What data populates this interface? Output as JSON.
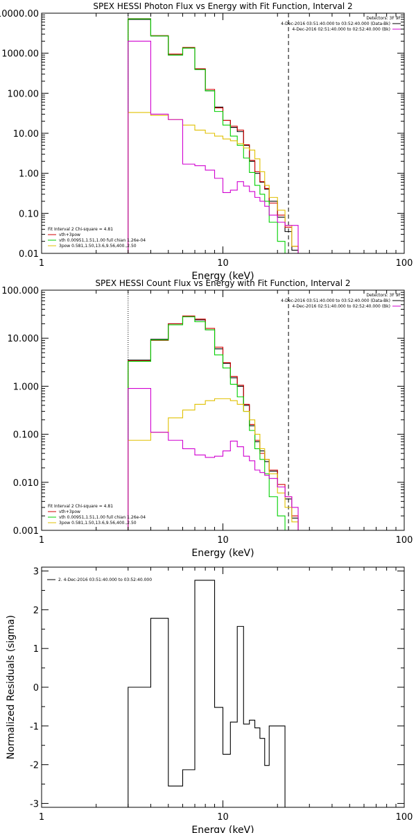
{
  "colors": {
    "black": "#000000",
    "red": "#d00000",
    "green": "#00d000",
    "magenta": "#d000d0",
    "yellow": "#e0c000"
  },
  "chart_data": [
    {
      "type": "line",
      "title": "SPEX HESSI Photon Flux vs Energy with Fit Function, Interval 2",
      "xlabel": "Energy (keV)",
      "ylabel": "",
      "xscale": "log",
      "yscale": "log",
      "xlim": [
        1,
        100
      ],
      "ylim": [
        0.01,
        10000
      ],
      "xticks": [
        {
          "value": 1,
          "label": "1"
        },
        {
          "value": 10,
          "label": "10"
        },
        {
          "value": 100,
          "label": "100"
        }
      ],
      "yticks": [
        {
          "value": 10000,
          "label": "10000.00"
        },
        {
          "value": 1000,
          "label": "1000.00"
        },
        {
          "value": 100,
          "label": "100.00"
        },
        {
          "value": 10,
          "label": "10.00"
        },
        {
          "value": 1,
          "label": "1.00"
        },
        {
          "value": 0.1,
          "label": "0.10"
        },
        {
          "value": 0.01,
          "label": "0.01"
        }
      ],
      "vlines": [
        {
          "x": 3.0,
          "style": "dotted",
          "color": "black"
        },
        {
          "x": 23.0,
          "style": "dashed",
          "color": "black"
        }
      ],
      "legend_top": {
        "placement": "top-right",
        "header": "Detectors: 3F 9F",
        "entries": [
          {
            "label": "4-Dec-2016 03:51:40.000 to 03:52:40.000 (Data-Bk)",
            "color": "black"
          },
          {
            "label": "4-Dec-2016 02:51:40.000 to 02:52:40.000 (Bk)",
            "color": "magenta"
          }
        ]
      },
      "legend_bottom": {
        "placement": "bottom-left",
        "header": "Fit Interval 2   Chi-square = 4.81",
        "entries": [
          {
            "label": "vth+3pow",
            "color": "red"
          },
          {
            "label": "vth 0.00951,1.51,1.00  full chian 1.26e-04",
            "color": "green"
          },
          {
            "label": "3pow 0.581,1.50,13.6,9.56,400.,2.50",
            "color": "yellow"
          }
        ]
      },
      "edges": [
        3.0,
        4.0,
        5.0,
        6.0,
        7.0,
        8.0,
        9.0,
        10.0,
        11.0,
        12.0,
        13.0,
        14.0,
        15.0,
        16.0,
        17.0,
        18.0,
        20.0,
        22.0,
        24.0,
        26.0
      ],
      "series": [
        {
          "name": "Data-Bk",
          "color": "black",
          "values": [
            7000,
            2700,
            900,
            1350,
            400,
            115,
            45,
            21,
            14,
            11,
            5.0,
            2.0,
            1.0,
            0.6,
            0.4,
            0.2,
            0.08,
            0.035,
            0.012
          ]
        },
        {
          "name": "vth+3pow",
          "color": "red",
          "values": [
            7300,
            2750,
            950,
            1400,
            410,
            125,
            43,
            21,
            15,
            12,
            5.2,
            2.1,
            1.1,
            0.62,
            0.42,
            0.18,
            0.09,
            0.045,
            0.015
          ]
        },
        {
          "name": "vth",
          "color": "green",
          "values": [
            7200,
            2700,
            900,
            1350,
            390,
            115,
            35,
            16,
            8.5,
            5.0,
            2.4,
            1.05,
            0.5,
            0.3,
            0.2,
            0.06,
            0.02,
            0.01,
            0.01
          ]
        },
        {
          "name": "3pow",
          "color": "yellow",
          "values": [
            33,
            28,
            22,
            16,
            12,
            10,
            8.5,
            7.2,
            6.5,
            5.5,
            4.3,
            3.8,
            2.3,
            1.1,
            0.5,
            0.25,
            0.12,
            0.05,
            0.015
          ]
        },
        {
          "name": "Bk",
          "color": "magenta",
          "values": [
            2000,
            30,
            22,
            1.7,
            1.55,
            1.2,
            0.75,
            0.33,
            0.38,
            0.62,
            0.48,
            0.35,
            0.25,
            0.2,
            0.15,
            0.09,
            0.06,
            0.05,
            0.05
          ]
        }
      ]
    },
    {
      "type": "line",
      "title": "SPEX HESSI Count Flux vs Energy with Fit Function, Interval 2",
      "xlabel": "Energy (keV)",
      "ylabel": "",
      "xscale": "log",
      "yscale": "log",
      "xlim": [
        1,
        100
      ],
      "ylim": [
        0.001,
        100
      ],
      "xticks": [
        {
          "value": 1,
          "label": "1"
        },
        {
          "value": 10,
          "label": "10"
        },
        {
          "value": 100,
          "label": "100"
        }
      ],
      "yticks": [
        {
          "value": 100,
          "label": "100.000"
        },
        {
          "value": 10,
          "label": "10.000"
        },
        {
          "value": 1,
          "label": "1.000"
        },
        {
          "value": 0.1,
          "label": "0.100"
        },
        {
          "value": 0.01,
          "label": "0.010"
        },
        {
          "value": 0.001,
          "label": "0.001"
        }
      ],
      "vlines": [
        {
          "x": 3.0,
          "style": "dotted",
          "color": "black"
        },
        {
          "x": 23.0,
          "style": "dashed",
          "color": "black"
        }
      ],
      "legend_top": {
        "placement": "top-right",
        "header": "Detectors: 3F 9F",
        "entries": [
          {
            "label": "4-Dec-2016 03:51:40.000 to 03:52:40.000 (Data-Bk)",
            "color": "black"
          },
          {
            "label": "4-Dec-2016 02:51:40.000 to 02:52:40.000 (Bk)",
            "color": "magenta"
          }
        ]
      },
      "legend_bottom": {
        "placement": "bottom-left",
        "header": "Fit Interval 2   Chi-square = 4.81",
        "entries": [
          {
            "label": "vth+3pow",
            "color": "red"
          },
          {
            "label": "vth 0.00951,1.51,1.00  full chian 1.26e-04",
            "color": "green"
          },
          {
            "label": "3pow 0.581,1.50,13.6,9.56,400.,2.50",
            "color": "yellow"
          }
        ]
      },
      "edges": [
        3.0,
        4.0,
        5.0,
        6.0,
        7.0,
        8.0,
        9.0,
        10.0,
        11.0,
        12.0,
        13.0,
        14.0,
        15.0,
        16.0,
        17.0,
        18.0,
        20.0,
        22.0,
        24.0,
        26.0
      ],
      "series": [
        {
          "name": "Data-Bk",
          "color": "black",
          "values": [
            3.5,
            9.5,
            20,
            28,
            24,
            15,
            6.0,
            3.0,
            1.5,
            1.0,
            0.4,
            0.15,
            0.07,
            0.045,
            0.027,
            0.017,
            0.008,
            0.0045,
            0.0018
          ]
        },
        {
          "name": "vth+3pow",
          "color": "red",
          "values": [
            3.4,
            9.0,
            20,
            29,
            25,
            16,
            6.5,
            3.1,
            1.6,
            1.05,
            0.42,
            0.16,
            0.075,
            0.04,
            0.03,
            0.018,
            0.009,
            0.005,
            0.002
          ]
        },
        {
          "name": "vth",
          "color": "green",
          "values": [
            3.3,
            9.2,
            19,
            28,
            22,
            15,
            4.5,
            2.4,
            1.1,
            0.6,
            0.3,
            0.12,
            0.05,
            0.03,
            0.015,
            0.005,
            0.002,
            0.001,
            0.001
          ]
        },
        {
          "name": "3pow",
          "color": "yellow",
          "values": [
            0.075,
            0.11,
            0.22,
            0.32,
            0.42,
            0.5,
            0.55,
            0.55,
            0.5,
            0.42,
            0.3,
            0.2,
            0.1,
            0.05,
            0.03,
            0.015,
            0.006,
            0.003,
            0.0015
          ]
        },
        {
          "name": "Bk",
          "color": "magenta",
          "values": [
            0.9,
            0.11,
            0.075,
            0.05,
            0.037,
            0.033,
            0.035,
            0.045,
            0.072,
            0.055,
            0.035,
            0.028,
            0.018,
            0.016,
            0.014,
            0.012,
            0.008,
            0.005,
            0.003
          ]
        }
      ]
    },
    {
      "type": "line",
      "title": "",
      "xlabel": "Energy (keV)",
      "ylabel": "Normalized Residuals (sigma)",
      "xscale": "log",
      "yscale": "linear",
      "xlim": [
        1,
        100
      ],
      "ylim": [
        -3.1,
        3.1
      ],
      "xticks": [
        {
          "value": 1,
          "label": "1"
        },
        {
          "value": 10,
          "label": "10"
        },
        {
          "value": 100,
          "label": "100"
        }
      ],
      "yticks": [
        {
          "value": 3,
          "label": "3"
        },
        {
          "value": 2,
          "label": "2"
        },
        {
          "value": 1,
          "label": "1"
        },
        {
          "value": 0,
          "label": "0"
        },
        {
          "value": -1,
          "label": "-1"
        },
        {
          "value": -2,
          "label": "-2"
        },
        {
          "value": -3,
          "label": "-3"
        }
      ],
      "legend_top": {
        "placement": "top-left",
        "header": "",
        "entries": [
          {
            "label": "2.  4-Dec-2016 03:51:40.000 to 03:52:40.000",
            "color": "black"
          }
        ]
      },
      "edges": [
        3.0,
        4.0,
        5.0,
        6.0,
        7.0,
        8.0,
        9.0,
        10.0,
        11.0,
        12.0,
        13.0,
        14.0,
        15.0,
        16.0,
        17.0,
        18.0,
        20.0,
        22.0
      ],
      "drop_to": -3.1,
      "series": [
        {
          "name": "",
          "color": "black",
          "values": [
            0.0,
            1.78,
            -2.55,
            -2.13,
            2.76,
            2.76,
            -0.52,
            -1.73,
            -0.9,
            1.57,
            -0.95,
            -0.85,
            -1.05,
            -1.32,
            -2.02,
            -1.0,
            -1.0
          ]
        }
      ]
    }
  ]
}
